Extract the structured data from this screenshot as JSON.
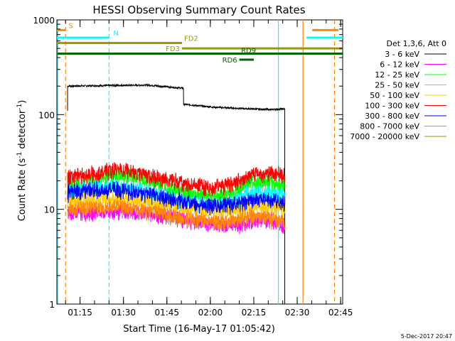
{
  "chart_data": {
    "type": "line",
    "title": "HESSI Observing Summary Count Rates",
    "xlabel": "Start Time (16-May-17 01:05:42)",
    "ylabel_main": "Count Rate (s",
    "ylabel_sup1": "-1",
    "ylabel_mid": " detector",
    "ylabel_sup2": "-1",
    "ylabel_end": ")",
    "footer": "5-Dec-2017 20:47",
    "y_scale": "log",
    "ylim": [
      1,
      1000
    ],
    "xlim_minutes": [
      1.3,
      100.0
    ],
    "x_tick_labels": [
      "01:15",
      "01:30",
      "01:45",
      "02:00",
      "02:15",
      "02:30",
      "02:45"
    ],
    "x_ticks_minutes": [
      9.3,
      24.3,
      39.3,
      54.3,
      69.3,
      84.3,
      99.3
    ],
    "y_tick_labels": [
      "1",
      "10",
      "100",
      "1000"
    ],
    "y_ticks": [
      1,
      10,
      100,
      1000
    ],
    "legend_title": "Det 1,3,6, Att 0",
    "series": [
      {
        "name": "3 - 6 keV",
        "color": "#000000",
        "segments": [
          [
            5,
            200
          ],
          [
            19,
            203
          ],
          [
            33,
            205
          ],
          [
            38,
            198
          ],
          [
            45,
            190
          ],
          [
            46,
            128
          ],
          [
            55,
            120
          ],
          [
            65,
            116
          ],
          [
            75,
            113
          ],
          [
            80,
            115
          ]
        ]
      },
      {
        "name": "6 - 12 keV",
        "color": "#ff00ff",
        "segments": [
          [
            5,
            9
          ],
          [
            15,
            9.5
          ],
          [
            25,
            9.5
          ],
          [
            35,
            9
          ],
          [
            45,
            8
          ],
          [
            55,
            7
          ],
          [
            65,
            7
          ],
          [
            72,
            8
          ],
          [
            80,
            7
          ]
        ]
      },
      {
        "name": "12 - 25 keV",
        "color": "#00ff00",
        "segments": [
          [
            5,
            17
          ],
          [
            12,
            20
          ],
          [
            18,
            22
          ],
          [
            23,
            23
          ],
          [
            30,
            21
          ],
          [
            38,
            18
          ],
          [
            45,
            15
          ],
          [
            55,
            14
          ],
          [
            62,
            15
          ],
          [
            67,
            19
          ],
          [
            72,
            19
          ],
          [
            80,
            18
          ]
        ]
      },
      {
        "name": "25 - 50 keV",
        "color": "#00ffff",
        "segments": [
          [
            5,
            15
          ],
          [
            12,
            17
          ],
          [
            20,
            18
          ],
          [
            30,
            16
          ],
          [
            38,
            14
          ],
          [
            45,
            12
          ],
          [
            55,
            11
          ],
          [
            62,
            12
          ],
          [
            67,
            15
          ],
          [
            72,
            15
          ],
          [
            80,
            14
          ]
        ]
      },
      {
        "name": "50 - 100 keV",
        "color": "#ffcc00",
        "segments": [
          [
            5,
            12
          ],
          [
            14,
            13
          ],
          [
            22,
            13
          ],
          [
            32,
            12
          ],
          [
            40,
            11
          ],
          [
            47,
            10
          ],
          [
            55,
            9.5
          ],
          [
            63,
            10
          ],
          [
            70,
            11
          ],
          [
            80,
            10
          ]
        ]
      },
      {
        "name": "100 - 300 keV",
        "color": "#ff0000",
        "segments": [
          [
            5,
            22
          ],
          [
            14,
            24
          ],
          [
            22,
            27
          ],
          [
            28,
            25
          ],
          [
            36,
            22
          ],
          [
            45,
            19
          ],
          [
            55,
            17
          ],
          [
            63,
            19
          ],
          [
            68,
            23
          ],
          [
            74,
            24
          ],
          [
            80,
            23
          ]
        ]
      },
      {
        "name": "300 - 800 keV",
        "color": "#0000ff",
        "segments": [
          [
            5,
            15
          ],
          [
            14,
            16
          ],
          [
            22,
            16.5
          ],
          [
            30,
            15
          ],
          [
            38,
            13.5
          ],
          [
            45,
            12
          ],
          [
            55,
            11
          ],
          [
            63,
            11.5
          ],
          [
            68,
            12.5
          ],
          [
            74,
            12.5
          ],
          [
            80,
            12
          ]
        ]
      },
      {
        "name": "800 - 7000 keV",
        "color": "#ff8800",
        "segments": [
          [
            5,
            10
          ],
          [
            14,
            10.5
          ],
          [
            22,
            11
          ],
          [
            30,
            10
          ],
          [
            38,
            9
          ],
          [
            45,
            8
          ],
          [
            55,
            7.5
          ],
          [
            63,
            7.5
          ],
          [
            68,
            8.5
          ],
          [
            74,
            8
          ],
          [
            80,
            7.5
          ]
        ]
      },
      {
        "name": "7000 - 20000 keV",
        "color": "#999900",
        "segments": []
      }
    ],
    "annotations": [
      {
        "label": "S",
        "color": "#ff8800",
        "x_start": 1.3,
        "x_end": 4.3,
        "y": 780
      },
      {
        "label": "N",
        "color": "#00ffff",
        "x_start": 1.3,
        "x_end": 19.3,
        "y": 650
      },
      {
        "label": "FD2",
        "color": "#999900",
        "x_start": 1.3,
        "x_end": 44.5,
        "y": 570
      },
      {
        "label": "FD3",
        "color": "#999900",
        "x_start": 44.5,
        "x_end": 100.0,
        "y": 500
      },
      {
        "label": "RD6",
        "color": "#006600",
        "x_start": 64.3,
        "x_end": 69.3,
        "y": 380
      },
      {
        "label": "RD9",
        "color": "#006600",
        "x_start": 1.3,
        "x_end": 100.0,
        "y": 440
      },
      {
        "label": "",
        "color": "#00ffff",
        "x_start": 87.5,
        "x_end": 100.0,
        "y": 650
      },
      {
        "label": "",
        "color": "#ff8800",
        "x_start": 89.5,
        "x_end": 98.5,
        "y": 780
      }
    ],
    "vlines": [
      {
        "x": 1.6,
        "color": "#00ffff",
        "dash": false
      },
      {
        "x": 4.3,
        "color": "#ff8800",
        "dash": true
      },
      {
        "x": 19.3,
        "color": "#00ffff",
        "dash": true
      },
      {
        "x": 77.8,
        "color": "#00ffff",
        "dash": false
      },
      {
        "x": 86.3,
        "color": "#ff8800",
        "dash": false
      },
      {
        "x": 97.2,
        "color": "#ff8800",
        "dash": true
      }
    ],
    "grid": false,
    "legend_position": "right"
  }
}
